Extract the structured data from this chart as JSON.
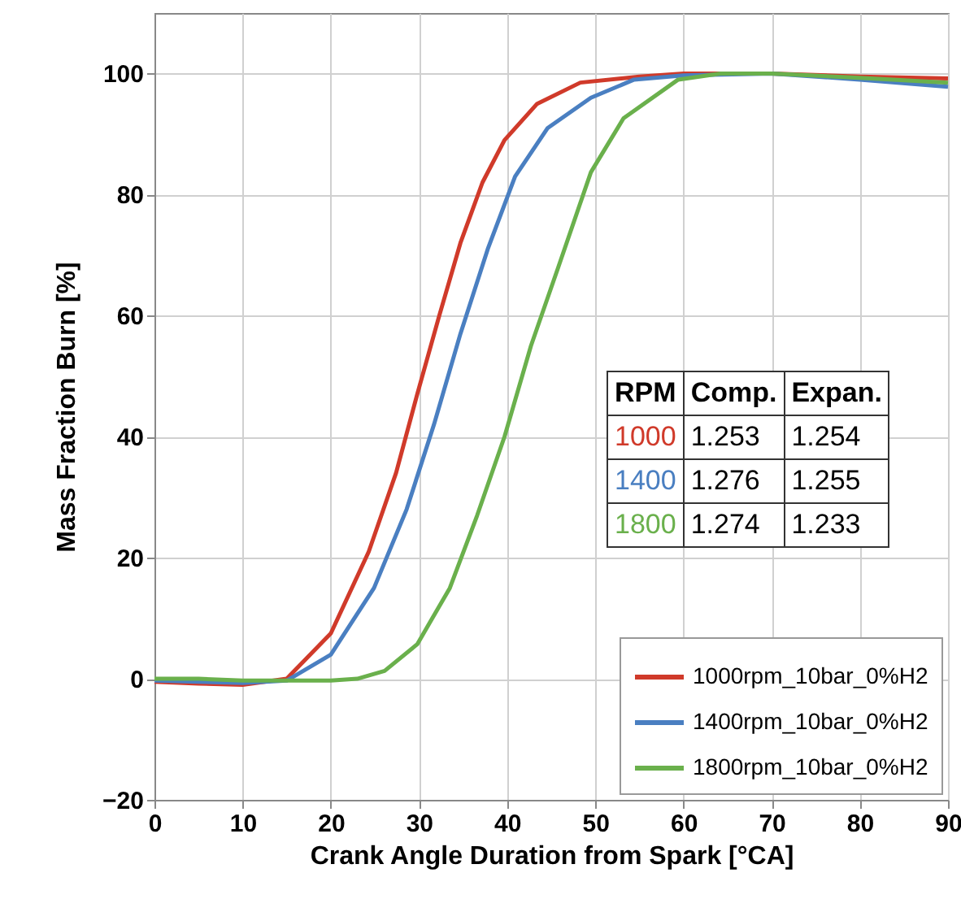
{
  "chart_data": {
    "type": "line",
    "xlabel": "Crank Angle Duration from Spark [°CA]",
    "ylabel": "Mass Fraction Burn [%]",
    "xlim": [
      0,
      90
    ],
    "xticks": [
      0,
      10,
      20,
      30,
      40,
      50,
      60,
      70,
      80,
      90
    ],
    "ylim": [
      -20,
      110
    ],
    "yticks": [
      -20,
      0,
      20,
      40,
      60,
      80,
      100
    ],
    "grid": true,
    "legend": "bottom right",
    "annotations": [
      "RPM",
      "Comp.",
      "Expan.",
      "1000",
      "1.253",
      "1.254",
      "1400",
      "1.276",
      "1.255",
      "1800",
      "1.274",
      "1.233"
    ],
    "series": [
      {
        "name": "1000rpm_10bar_0%H2",
        "color": "#d03a2a",
        "x": [
          0,
          5,
          10,
          15,
          20,
          24.3,
          27.4,
          29.8,
          32.3,
          34.7,
          37.2,
          39.7,
          43.4,
          48.3,
          55,
          60,
          70,
          80,
          90
        ],
        "values": [
          -0.5,
          -0.8,
          -1,
          0,
          7.5,
          21,
          34,
          47,
          60,
          72,
          82,
          89,
          95,
          98.5,
          99.5,
          100,
          100,
          99.5,
          99.2
        ]
      },
      {
        "name": "1400rpm_10bar_0%H2",
        "color": "#4a7fc1",
        "x": [
          0,
          5,
          10,
          15,
          20,
          24.9,
          28.6,
          31.7,
          34.7,
          37.8,
          40.9,
          44.6,
          49.5,
          54.4,
          60,
          70,
          80,
          90
        ],
        "values": [
          -0.3,
          -0.5,
          -0.7,
          -0.3,
          4,
          15,
          28,
          42,
          57,
          71,
          83,
          91,
          96,
          99,
          99.7,
          100,
          99,
          97.8
        ]
      },
      {
        "name": "1800rpm_10bar_0%H2",
        "color": "#6ab04c",
        "x": [
          0,
          5,
          10,
          15,
          20,
          23,
          26.1,
          29.8,
          33.5,
          36.6,
          39.7,
          42.7,
          45.8,
          49.5,
          53.2,
          59.4,
          64.2,
          70,
          80,
          90
        ],
        "values": [
          0,
          0,
          -0.3,
          -0.3,
          -0.3,
          0,
          1.3,
          5.7,
          15,
          27,
          40,
          55,
          68,
          83.7,
          92.6,
          99,
          100,
          100,
          99.3,
          98.5
        ]
      }
    ]
  }
}
